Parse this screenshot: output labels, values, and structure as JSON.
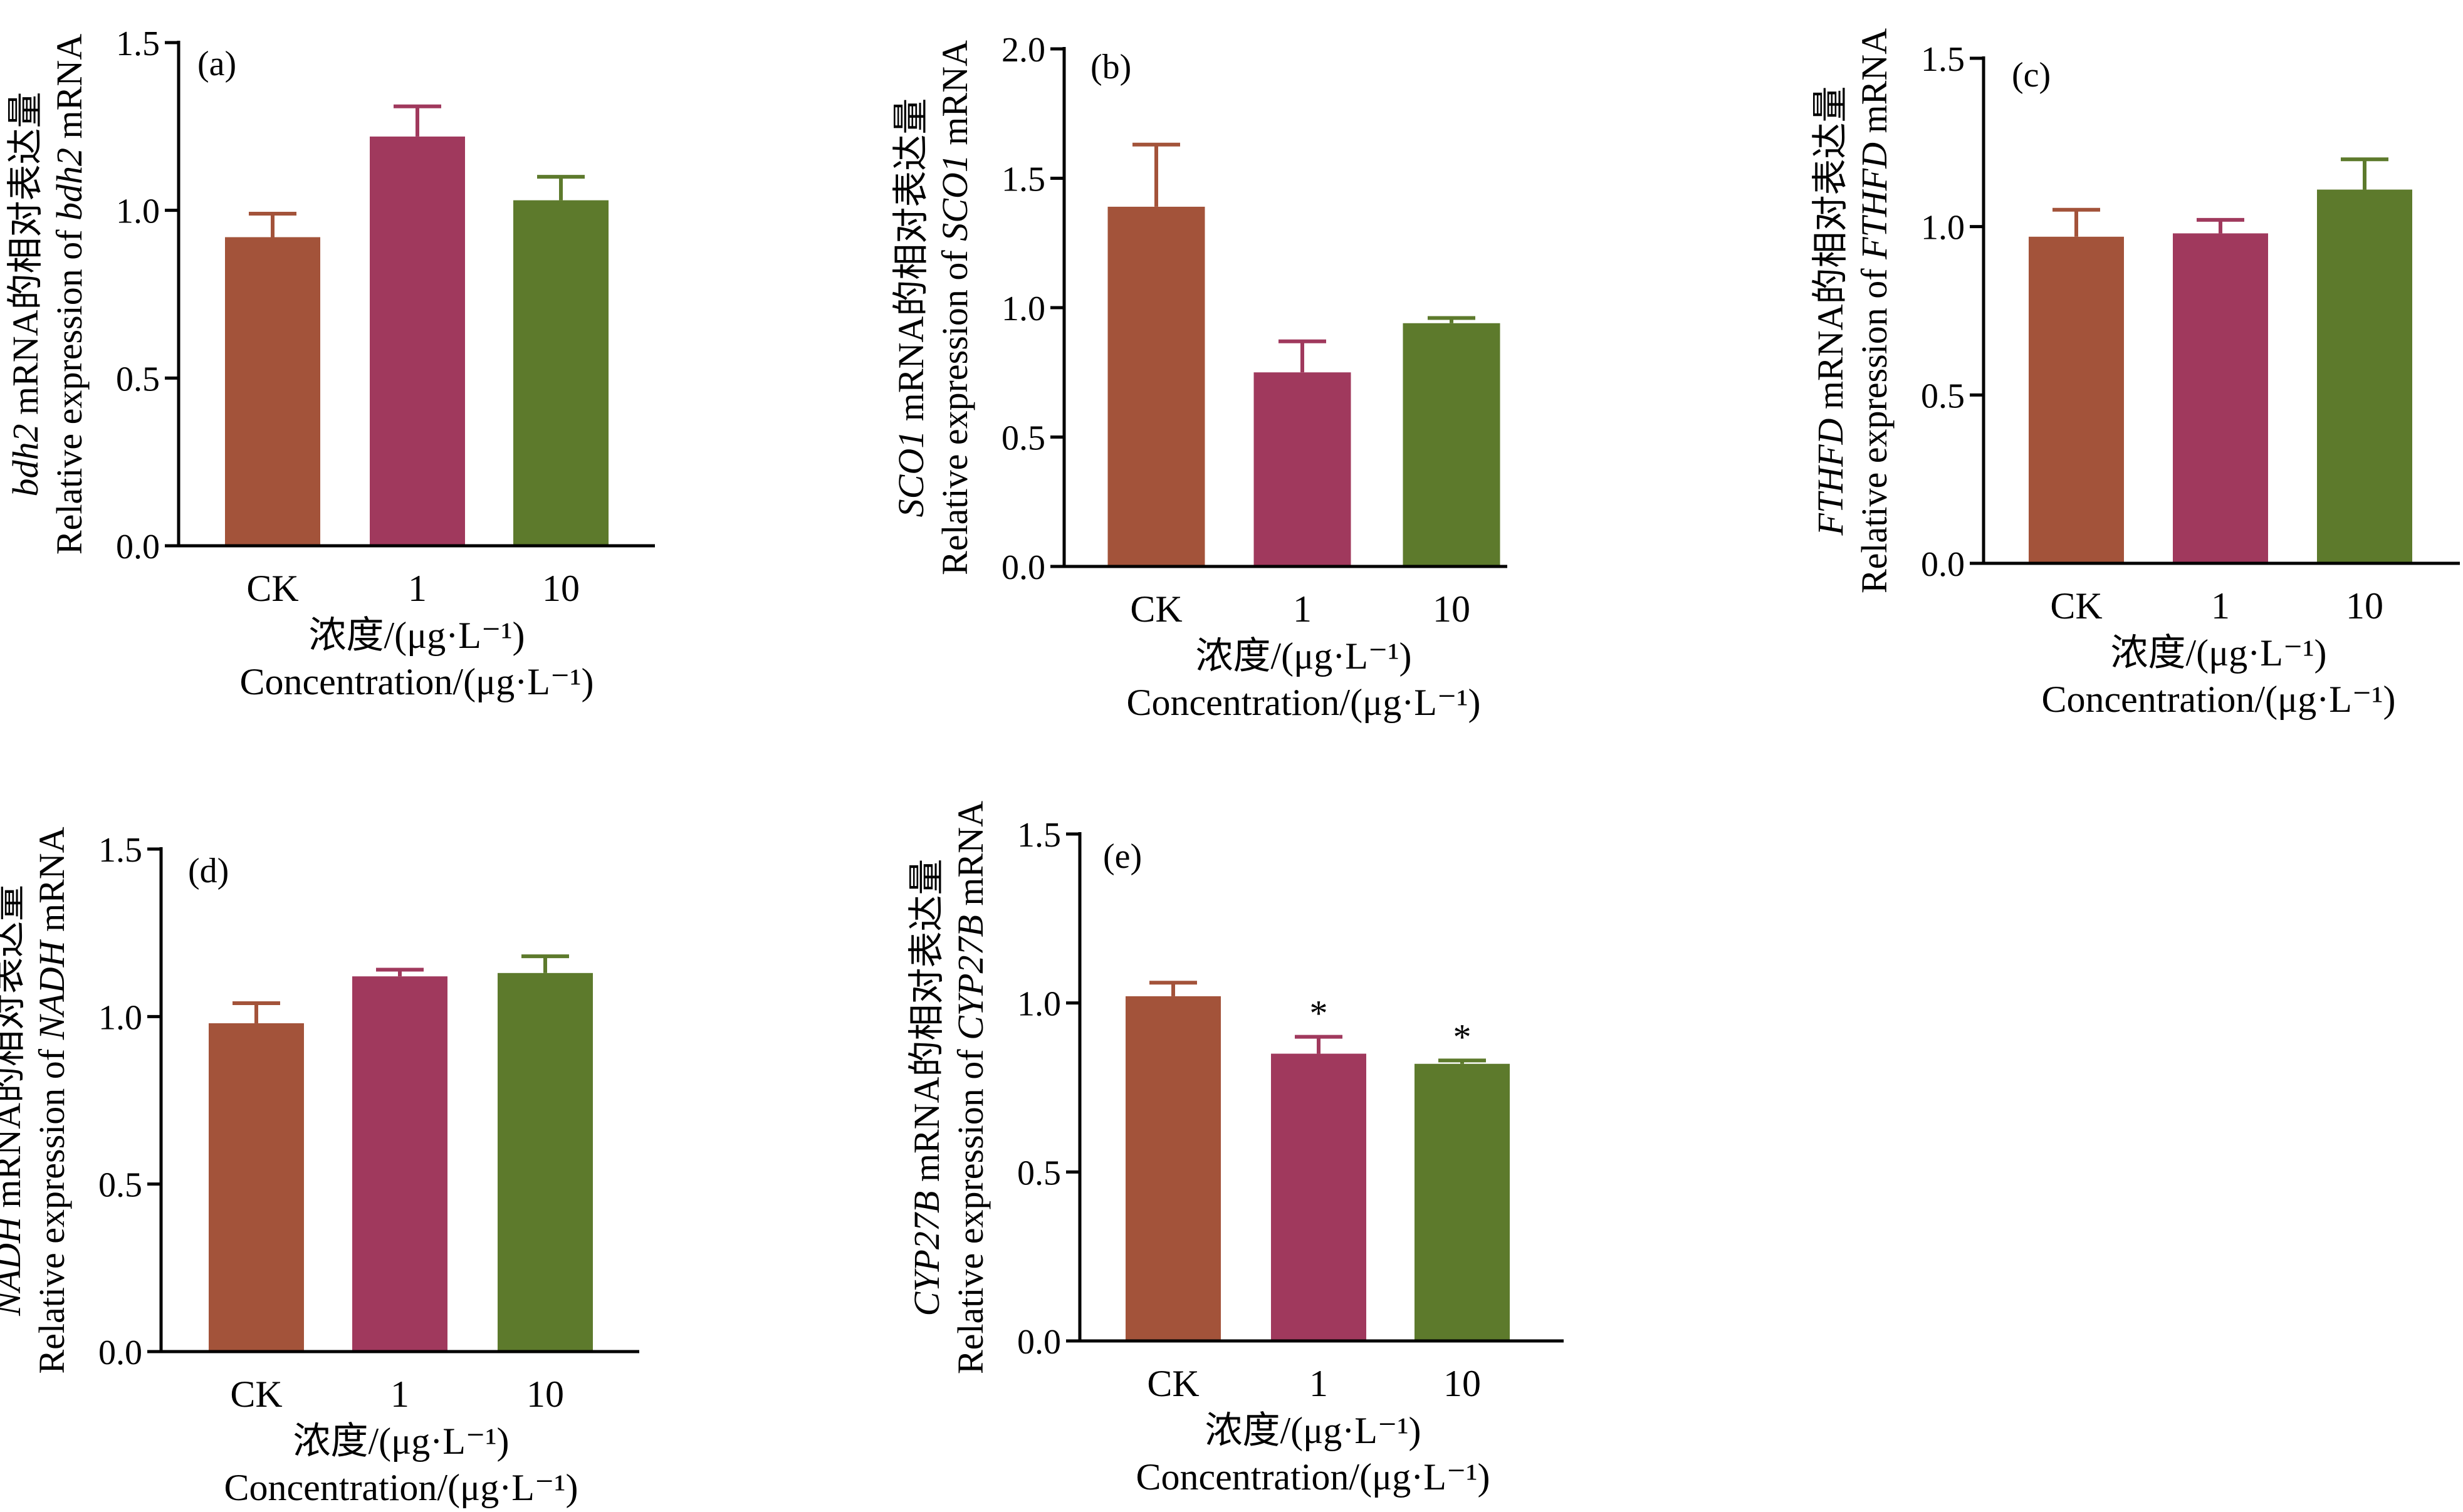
{
  "colors": {
    "CK": "#a3533a",
    "1": "#a0395d",
    "10": "#5d7a2c",
    "axis": "#000000"
  },
  "x_label_cn": "浓度/(μg·L⁻¹)",
  "x_label_en": "Concentration/(μg·L⁻¹)",
  "chart_data": [
    {
      "panel_label": "(a)",
      "type": "bar",
      "categories": [
        "CK",
        "1",
        "10"
      ],
      "values": [
        0.92,
        1.22,
        1.03
      ],
      "errors": [
        0.07,
        0.09,
        0.07
      ],
      "significance": [
        "",
        "",
        ""
      ],
      "ylim": [
        0,
        1.5
      ],
      "yticks": [
        "0.0",
        "0.5",
        "1.0",
        "1.5"
      ],
      "ylabel_cn_gene": "bdh2",
      "ylabel_cn_rest": " mRNA的相对表达量",
      "ylabel_en_pre": "Relative expression of ",
      "ylabel_en_gene": "bdh2",
      "ylabel_en_post": " mRNA",
      "xlabel_cn": "浓度/(μg·L⁻¹)",
      "xlabel_en": "Concentration/(μg·L⁻¹)"
    },
    {
      "panel_label": "(b)",
      "type": "bar",
      "categories": [
        "CK",
        "1",
        "10"
      ],
      "values": [
        1.39,
        0.75,
        0.94
      ],
      "errors": [
        0.24,
        0.12,
        0.02
      ],
      "significance": [
        "",
        "",
        ""
      ],
      "ylim": [
        0,
        2.0
      ],
      "yticks": [
        "0.0",
        "0.5",
        "1.0",
        "1.5",
        "2.0"
      ],
      "ylabel_cn_gene": "SCO1",
      "ylabel_cn_rest": " mRNA的相对表达量",
      "ylabel_en_pre": "Relative expression of ",
      "ylabel_en_gene": "SCO1",
      "ylabel_en_post": " mRNA",
      "xlabel_cn": "浓度/(μg·L⁻¹)",
      "xlabel_en": "Concentration/(μg·L⁻¹)"
    },
    {
      "panel_label": "(c)",
      "type": "bar",
      "categories": [
        "CK",
        "1",
        "10"
      ],
      "values": [
        0.97,
        0.98,
        1.11
      ],
      "errors": [
        0.08,
        0.04,
        0.09
      ],
      "significance": [
        "",
        "",
        ""
      ],
      "ylim": [
        0,
        1.5
      ],
      "yticks": [
        "0.0",
        "0.5",
        "1.0",
        "1.5"
      ],
      "ylabel_cn_gene": "FTHFD",
      "ylabel_cn_rest": " mRNA的相对表达量",
      "ylabel_en_pre": "Relative expression of ",
      "ylabel_en_gene": "FTHFD",
      "ylabel_en_post": " mRNA",
      "xlabel_cn": "浓度/(μg·L⁻¹)",
      "xlabel_en": "Concentration/(μg·L⁻¹)"
    },
    {
      "panel_label": "(d)",
      "type": "bar",
      "categories": [
        "CK",
        "1",
        "10"
      ],
      "values": [
        0.98,
        1.12,
        1.13
      ],
      "errors": [
        0.06,
        0.02,
        0.05
      ],
      "significance": [
        "",
        "",
        ""
      ],
      "ylim": [
        0,
        1.5
      ],
      "yticks": [
        "0.0",
        "0.5",
        "1.0",
        "1.5"
      ],
      "ylabel_cn_gene": "NADH",
      "ylabel_cn_rest": " mRNA的相对表达量",
      "ylabel_en_pre": "Relative expression of ",
      "ylabel_en_gene": "NADH",
      "ylabel_en_post": " mRNA",
      "xlabel_cn": "浓度/(μg·L⁻¹)",
      "xlabel_en": "Concentration/(μg·L⁻¹)"
    },
    {
      "panel_label": "(e)",
      "type": "bar",
      "categories": [
        "CK",
        "1",
        "10"
      ],
      "values": [
        1.02,
        0.85,
        0.82
      ],
      "errors": [
        0.04,
        0.05,
        0.01
      ],
      "significance": [
        "",
        "*",
        "*"
      ],
      "ylim": [
        0,
        1.5
      ],
      "yticks": [
        "0.0",
        "0.5",
        "1.0",
        "1.5"
      ],
      "ylabel_cn_gene": "CYP27B",
      "ylabel_cn_rest": " mRNA的相对表达量",
      "ylabel_en_pre": "Relative expression of ",
      "ylabel_en_gene": "CYP27B",
      "ylabel_en_post": " mRNA",
      "xlabel_cn": "浓度/(μg·L⁻¹)",
      "xlabel_en": "Concentration/(μg·L⁻¹)"
    }
  ]
}
